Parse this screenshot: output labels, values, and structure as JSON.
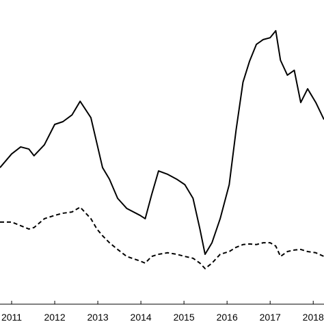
{
  "chart_data": {
    "type": "line",
    "x": [
      2010.73,
      2011.0,
      2011.21,
      2011.4,
      2011.52,
      2011.76,
      2012.0,
      2012.19,
      2012.4,
      2012.59,
      2012.84,
      2012.98,
      2013.11,
      2013.27,
      2013.46,
      2013.67,
      2013.98,
      2014.1,
      2014.25,
      2014.41,
      2014.62,
      2014.83,
      2015.02,
      2015.21,
      2015.37,
      2015.49,
      2015.65,
      2015.84,
      2016.05,
      2016.21,
      2016.37,
      2016.52,
      2016.68,
      2016.84,
      2017.0,
      2017.13,
      2017.24,
      2017.4,
      2017.56,
      2017.71,
      2017.87,
      2018.06,
      2018.25
    ],
    "series": [
      {
        "color": "#000000",
        "dash": false,
        "values": [
          44.9,
          49.4,
          51.7,
          51.0,
          48.8,
          52.4,
          59.1,
          60.0,
          62.2,
          66.7,
          61.3,
          52.8,
          44.9,
          41.1,
          34.8,
          31.5,
          29.2,
          28.1,
          36.0,
          43.8,
          42.7,
          41.1,
          39.3,
          34.8,
          24.7,
          16.4,
          20.2,
          28.1,
          39.3,
          57.3,
          73.0,
          79.8,
          85.4,
          87.0,
          87.6,
          89.9,
          80.2,
          75.3,
          76.9,
          66.3,
          70.8,
          66.3,
          60.7
        ]
      },
      {
        "color": "#000000",
        "dash": true,
        "values": [
          27.0,
          27.0,
          25.8,
          24.7,
          25.2,
          28.1,
          29.2,
          29.9,
          30.3,
          31.9,
          28.1,
          24.7,
          22.5,
          20.2,
          18.0,
          15.7,
          14.2,
          13.5,
          15.7,
          16.4,
          16.9,
          16.4,
          15.7,
          15.1,
          13.5,
          11.7,
          13.5,
          16.4,
          17.3,
          18.7,
          19.6,
          19.8,
          19.6,
          20.2,
          20.2,
          19.1,
          15.7,
          17.3,
          17.8,
          18.0,
          17.3,
          16.9,
          15.7
        ]
      }
    ],
    "xlim": [
      2010.73,
      2018.25
    ],
    "xticks": [
      2011,
      2012,
      2013,
      2014,
      2015,
      2016,
      2017,
      2018
    ],
    "ylim": [
      0,
      100
    ]
  }
}
